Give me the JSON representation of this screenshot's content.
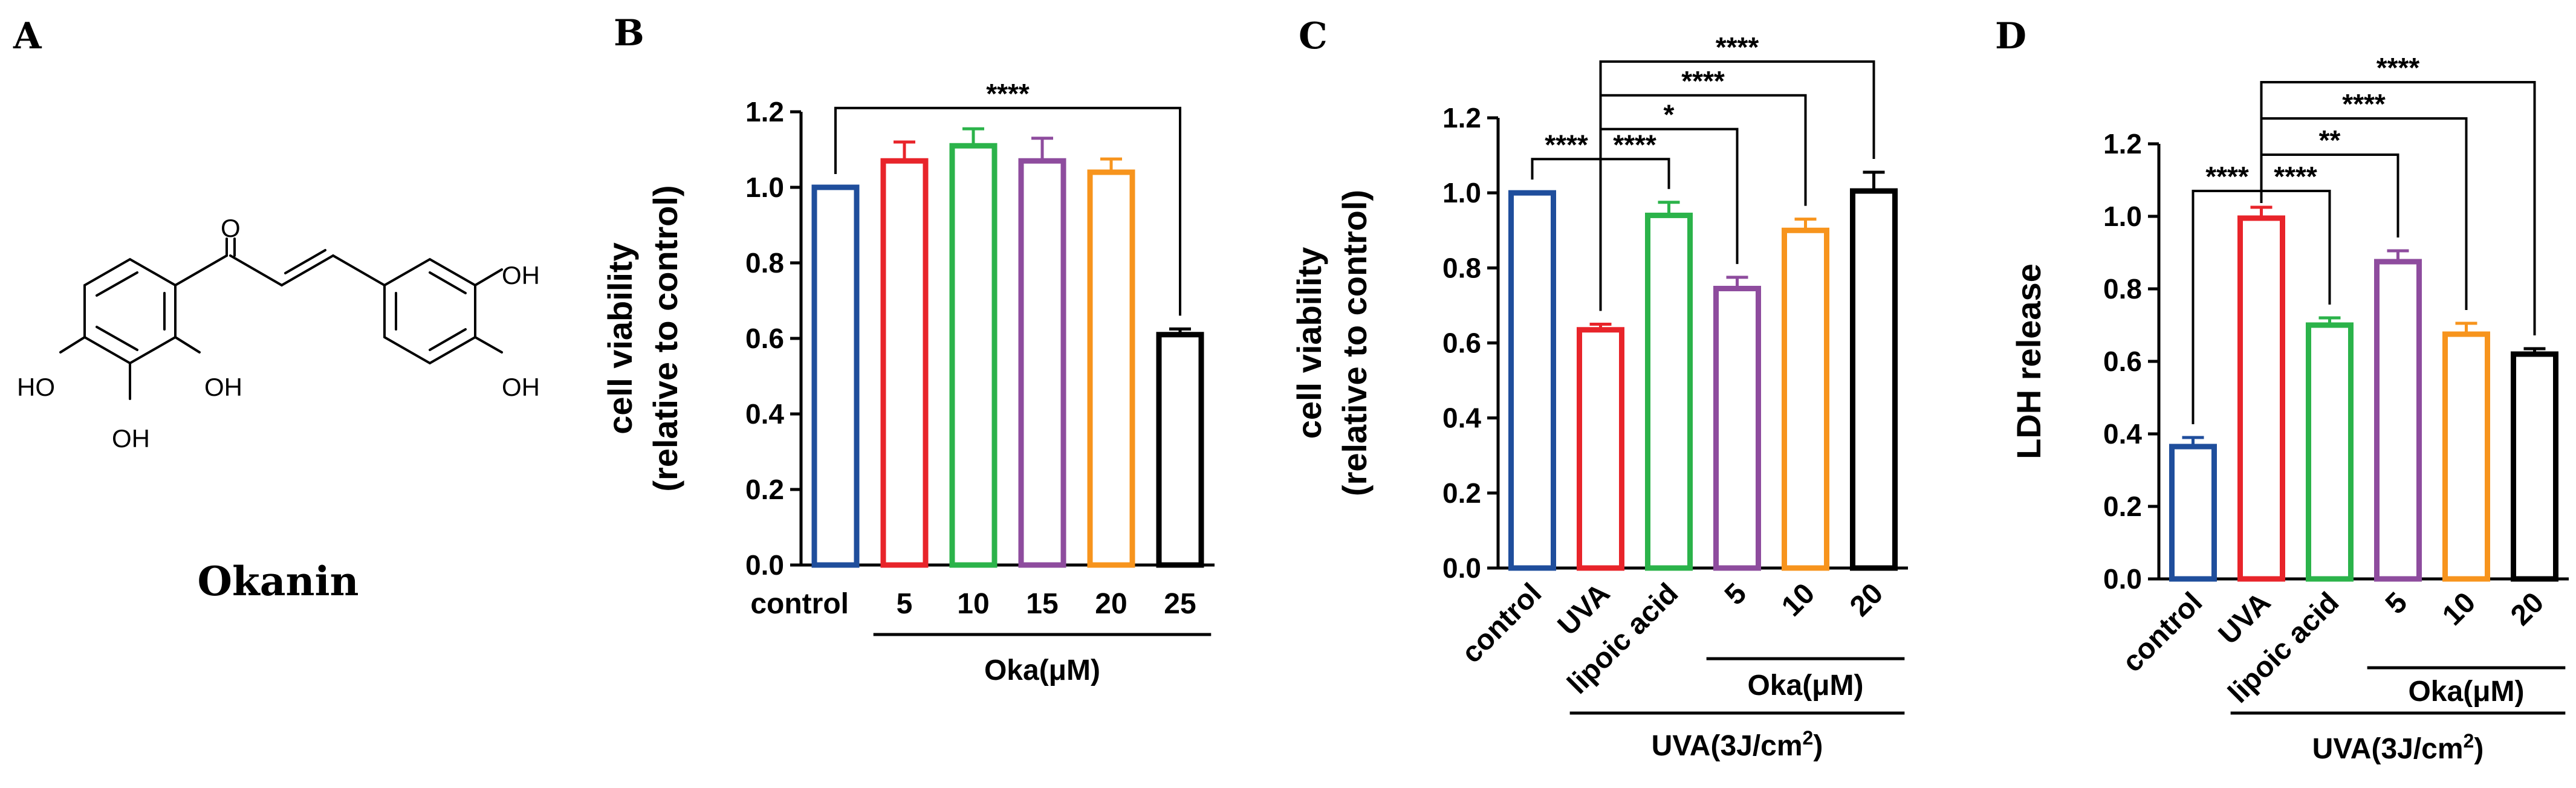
{
  "panels": {
    "a": {
      "letter": "A"
    },
    "b": {
      "letter": "B"
    },
    "c": {
      "letter": "C"
    },
    "d": {
      "letter": "D"
    }
  },
  "structure": {
    "name": "Okanin",
    "atoms": {
      "carbonyl_o": "O",
      "oh_top_right": "OH",
      "oh_bottom_right": "OH",
      "oh_left": "HO",
      "oh_mid": "OH",
      "oh_bottom": "OH"
    }
  },
  "colors": {
    "blue": "#1f4e9c",
    "red": "#e8242a",
    "green": "#2bb34a",
    "purple": "#8e4c9e",
    "orange": "#f7941d",
    "black": "#000000"
  },
  "chart_data": [
    {
      "id": "B",
      "type": "bar",
      "ylabel": [
        "cell viability",
        "(relative to control)"
      ],
      "ylim": [
        0,
        1.2
      ],
      "yticks": [
        "0.0",
        "0.2",
        "0.4",
        "0.6",
        "0.8",
        "1.0",
        "1.2"
      ],
      "categories": [
        "control",
        "5",
        "10",
        "15",
        "20",
        "25"
      ],
      "values": [
        1.0,
        1.07,
        1.11,
        1.07,
        1.04,
        0.61
      ],
      "errors": [
        0.0,
        0.05,
        0.045,
        0.06,
        0.035,
        0.015
      ],
      "bar_colors": [
        "blue",
        "red",
        "green",
        "purple",
        "orange",
        "black"
      ],
      "groups": [
        {
          "label": "Oka(μM)",
          "from": 1,
          "to": 5
        }
      ],
      "significance": [
        {
          "from": 0,
          "to": 5,
          "label": "****",
          "y": 1.21
        }
      ]
    },
    {
      "id": "C",
      "type": "bar",
      "ylabel": [
        "cell viability",
        "(relative to control)"
      ],
      "ylim": [
        0,
        1.2
      ],
      "yticks": [
        "0.0",
        "0.2",
        "0.4",
        "0.6",
        "0.8",
        "1.0",
        "1.2"
      ],
      "categories": [
        "control",
        "UVA",
        "lipoic acid",
        "5",
        "10",
        "20"
      ],
      "values": [
        1.0,
        0.635,
        0.94,
        0.745,
        0.9,
        1.005
      ],
      "errors": [
        0.0,
        0.015,
        0.035,
        0.03,
        0.03,
        0.05
      ],
      "bar_colors": [
        "blue",
        "red",
        "green",
        "purple",
        "orange",
        "black"
      ],
      "groups": [
        {
          "label": "Oka(μM)",
          "from": 3,
          "to": 5,
          "level": 0
        },
        {
          "label": "UVA(3J/cm",
          "sup": "2",
          "suffix": ")",
          "from": 1,
          "to": 5,
          "level": 1
        }
      ],
      "significance": [
        {
          "from": 0,
          "to": 1,
          "label": "****",
          "y": 1.09
        },
        {
          "from": 1,
          "to": 2,
          "label": "****",
          "y": 1.09
        },
        {
          "from": 1,
          "to": 3,
          "label": "*",
          "y": 1.17
        },
        {
          "from": 1,
          "to": 4,
          "label": "****",
          "y": 1.26
        },
        {
          "from": 1,
          "to": 5,
          "label": "****",
          "y": 1.35
        }
      ]
    },
    {
      "id": "D",
      "type": "bar",
      "ylabel": [
        "LDH release"
      ],
      "ylim": [
        0,
        1.2
      ],
      "yticks": [
        "0.0",
        "0.2",
        "0.4",
        "0.6",
        "0.8",
        "1.0",
        "1.2"
      ],
      "categories": [
        "control",
        "UVA",
        "lipoic acid",
        "5",
        "10",
        "20"
      ],
      "values": [
        0.365,
        0.995,
        0.7,
        0.875,
        0.675,
        0.62
      ],
      "errors": [
        0.025,
        0.03,
        0.02,
        0.03,
        0.03,
        0.015
      ],
      "bar_colors": [
        "blue",
        "red",
        "green",
        "purple",
        "orange",
        "black"
      ],
      "groups": [
        {
          "label": "Oka(μM)",
          "from": 3,
          "to": 5,
          "level": 0
        },
        {
          "label": "UVA(3J/cm",
          "sup": "2",
          "suffix": ")",
          "from": 1,
          "to": 5,
          "level": 1
        }
      ],
      "significance": [
        {
          "from": 0,
          "to": 1,
          "label": "****",
          "y": 1.07
        },
        {
          "from": 1,
          "to": 2,
          "label": "****",
          "y": 1.07
        },
        {
          "from": 1,
          "to": 3,
          "label": "**",
          "y": 1.17
        },
        {
          "from": 1,
          "to": 4,
          "label": "****",
          "y": 1.27
        },
        {
          "from": 1,
          "to": 5,
          "label": "****",
          "y": 1.37
        }
      ]
    }
  ]
}
